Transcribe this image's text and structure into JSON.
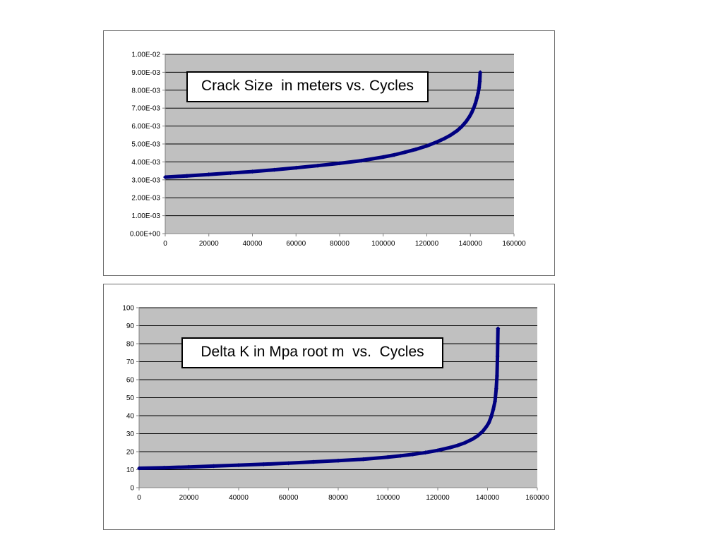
{
  "colors": {
    "plot_background": "#c0c0c0",
    "gridline": "#000000",
    "series": "#000080",
    "frame_border": "#6b6b6b"
  },
  "chart_data": [
    {
      "type": "scatter",
      "title": "Crack Size  in meters vs. Cycles",
      "xlabel": "",
      "ylabel": "",
      "xlim": [
        0,
        160000
      ],
      "ylim": [
        0,
        0.01
      ],
      "x_ticks": [
        0,
        20000,
        40000,
        60000,
        80000,
        100000,
        120000,
        140000,
        160000
      ],
      "x_tick_labels": [
        "0",
        "20000",
        "40000",
        "60000",
        "80000",
        "100000",
        "120000",
        "140000",
        "160000"
      ],
      "y_ticks": [
        0,
        0.001,
        0.002,
        0.003,
        0.004,
        0.005,
        0.006,
        0.007,
        0.008,
        0.009,
        0.01
      ],
      "y_tick_labels": [
        "0.00E+00",
        "1.00E-03",
        "2.00E-03",
        "3.00E-03",
        "4.00E-03",
        "5.00E-03",
        "6.00E-03",
        "7.00E-03",
        "8.00E-03",
        "9.00E-03",
        "1.00E-02"
      ],
      "grid": "horizontal",
      "legend": "none",
      "marker": "diamond",
      "series": [
        {
          "x": [
            0,
            10000,
            20000,
            30000,
            40000,
            50000,
            60000,
            70000,
            80000,
            90000,
            100000,
            105000,
            110000,
            115000,
            120000,
            125000,
            128000,
            131000,
            134000,
            136000,
            138000,
            139500,
            140500,
            141500,
            142300,
            143000,
            143500,
            144000,
            144300,
            144500
          ],
          "y": [
            0.00315,
            0.00322,
            0.0033,
            0.00338,
            0.00346,
            0.00356,
            0.00367,
            0.00379,
            0.00392,
            0.00407,
            0.00427,
            0.00439,
            0.00454,
            0.0047,
            0.00489,
            0.00513,
            0.0053,
            0.0055,
            0.00575,
            0.00597,
            0.00625,
            0.00651,
            0.00673,
            0.007,
            0.00727,
            0.00757,
            0.00783,
            0.00815,
            0.0085,
            0.009
          ]
        }
      ]
    },
    {
      "type": "scatter",
      "title": "Delta K in Mpa root m  vs.  Cycles",
      "xlabel": "",
      "ylabel": "",
      "xlim": [
        0,
        160000
      ],
      "ylim": [
        0,
        100
      ],
      "x_ticks": [
        0,
        20000,
        40000,
        60000,
        80000,
        100000,
        120000,
        140000,
        160000
      ],
      "x_tick_labels": [
        "0",
        "20000",
        "40000",
        "60000",
        "80000",
        "100000",
        "120000",
        "140000",
        "160000"
      ],
      "y_ticks": [
        0,
        10,
        20,
        30,
        40,
        50,
        60,
        70,
        80,
        90,
        100
      ],
      "y_tick_labels": [
        "0",
        "10",
        "20",
        "30",
        "40",
        "50",
        "60",
        "70",
        "80",
        "90",
        "100"
      ],
      "grid": "horizontal",
      "legend": "none",
      "marker": "diamond",
      "series": [
        {
          "x": [
            0,
            10000,
            20000,
            30000,
            40000,
            50000,
            60000,
            70000,
            80000,
            90000,
            100000,
            105000,
            110000,
            115000,
            120000,
            125000,
            128000,
            131000,
            134000,
            136000,
            138000,
            139500,
            140500,
            141500,
            142300,
            143000,
            143500,
            143800,
            144000,
            144200
          ],
          "y": [
            10.8,
            11.1,
            11.5,
            12.0,
            12.5,
            13.0,
            13.6,
            14.3,
            15.0,
            15.8,
            17.0,
            17.7,
            18.5,
            19.5,
            20.7,
            22.3,
            23.5,
            25.0,
            27.0,
            28.8,
            31.2,
            33.8,
            36.0,
            39.5,
            43.5,
            48.0,
            55.0,
            62.0,
            73.0,
            88.5
          ]
        }
      ]
    }
  ]
}
